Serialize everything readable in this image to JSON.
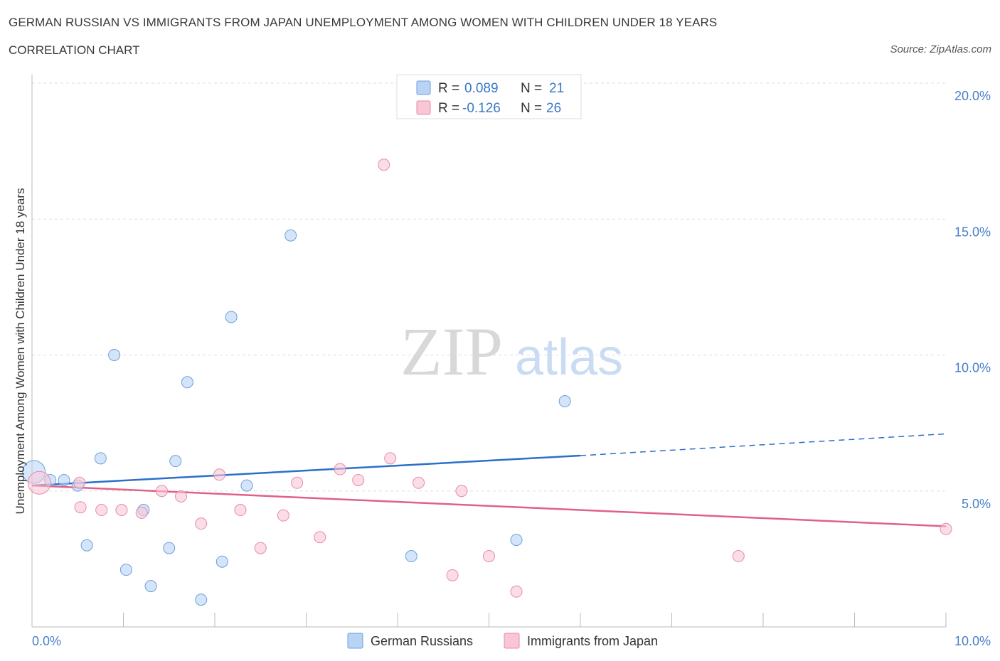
{
  "header": {
    "title": "GERMAN RUSSIAN VS IMMIGRANTS FROM JAPAN UNEMPLOYMENT AMONG WOMEN WITH CHILDREN UNDER 18 YEARS",
    "subtitle": "CORRELATION CHART",
    "source": "Source: ZipAtlas.com"
  },
  "watermark": {
    "zip": "ZIP",
    "atlas": "atlas"
  },
  "legend": {
    "r_label": "R =",
    "n_label": "N =",
    "rows": [
      {
        "r": "0.089",
        "n": "21"
      },
      {
        "r": "-0.126",
        "n": "26"
      }
    ]
  },
  "colors": {
    "german_fill": "#b9d3f5",
    "german_stroke": "#6c9fdc",
    "german_line": "#2a6fc9",
    "japan_fill": "#f9c6d5",
    "japan_stroke": "#e88aa8",
    "japan_line": "#e0608c",
    "axis_label": "#4a7fc8",
    "grid": "#dddddd"
  },
  "chart_data": {
    "type": "scatter",
    "title": "GERMAN RUSSIAN VS IMMIGRANTS FROM JAPAN UNEMPLOYMENT AMONG WOMEN WITH CHILDREN UNDER 18 YEARS",
    "xlabel": "",
    "ylabel": "Unemployment Among Women with Children Under 18 years",
    "xlim": [
      0,
      10
    ],
    "ylim": [
      0,
      20
    ],
    "x_tick_labels": [
      {
        "value": 0,
        "label": "0.0%"
      },
      {
        "value": 10,
        "label": "10.0%"
      }
    ],
    "y_tick_labels": [
      {
        "value": 5,
        "label": "5.0%"
      },
      {
        "value": 10,
        "label": "10.0%"
      },
      {
        "value": 15,
        "label": "15.0%"
      },
      {
        "value": 20,
        "label": "20.0%"
      }
    ],
    "grid": true,
    "legend_position": "top-center",
    "series": [
      {
        "name": "German Russians",
        "points": [
          {
            "x": 0.02,
            "y": 5.7,
            "large": true
          },
          {
            "x": 0.2,
            "y": 5.4
          },
          {
            "x": 0.35,
            "y": 5.4
          },
          {
            "x": 0.5,
            "y": 5.2
          },
          {
            "x": 0.6,
            "y": 3.0
          },
          {
            "x": 0.75,
            "y": 6.2
          },
          {
            "x": 0.9,
            "y": 10.0
          },
          {
            "x": 1.03,
            "y": 2.1
          },
          {
            "x": 1.22,
            "y": 4.3
          },
          {
            "x": 1.3,
            "y": 1.5
          },
          {
            "x": 1.5,
            "y": 2.9
          },
          {
            "x": 1.57,
            "y": 6.1
          },
          {
            "x": 1.7,
            "y": 9.0
          },
          {
            "x": 1.85,
            "y": 1.0
          },
          {
            "x": 2.08,
            "y": 2.4
          },
          {
            "x": 2.18,
            "y": 11.4
          },
          {
            "x": 2.35,
            "y": 5.2
          },
          {
            "x": 2.83,
            "y": 14.4
          },
          {
            "x": 4.15,
            "y": 2.6
          },
          {
            "x": 5.3,
            "y": 3.2
          },
          {
            "x": 5.83,
            "y": 8.3
          }
        ],
        "trend": {
          "x0": 0,
          "y0": 5.2,
          "x1": 6.0,
          "y1": 6.3,
          "dashed_to_x": 10,
          "dashed_to_y": 7.1
        }
      },
      {
        "name": "Immigrants from Japan",
        "points": [
          {
            "x": 0.08,
            "y": 5.3,
            "large": true
          },
          {
            "x": 0.52,
            "y": 5.3
          },
          {
            "x": 0.53,
            "y": 4.4
          },
          {
            "x": 0.76,
            "y": 4.3
          },
          {
            "x": 0.98,
            "y": 4.3
          },
          {
            "x": 1.2,
            "y": 4.2
          },
          {
            "x": 1.42,
            "y": 5.0
          },
          {
            "x": 1.63,
            "y": 4.8
          },
          {
            "x": 1.85,
            "y": 3.8
          },
          {
            "x": 2.05,
            "y": 5.6
          },
          {
            "x": 2.28,
            "y": 4.3
          },
          {
            "x": 2.5,
            "y": 2.9
          },
          {
            "x": 2.75,
            "y": 4.1
          },
          {
            "x": 2.9,
            "y": 5.3
          },
          {
            "x": 3.15,
            "y": 3.3
          },
          {
            "x": 3.37,
            "y": 5.8
          },
          {
            "x": 3.57,
            "y": 5.4
          },
          {
            "x": 3.85,
            "y": 17.0
          },
          {
            "x": 3.92,
            "y": 6.2
          },
          {
            "x": 4.23,
            "y": 5.3
          },
          {
            "x": 4.6,
            "y": 1.9
          },
          {
            "x": 4.7,
            "y": 5.0
          },
          {
            "x": 5.0,
            "y": 2.6
          },
          {
            "x": 5.3,
            "y": 1.3
          },
          {
            "x": 7.73,
            "y": 2.6
          },
          {
            "x": 10.0,
            "y": 3.6
          }
        ],
        "trend": {
          "x0": 0,
          "y0": 5.2,
          "x1": 10,
          "y1": 3.7
        }
      }
    ]
  }
}
